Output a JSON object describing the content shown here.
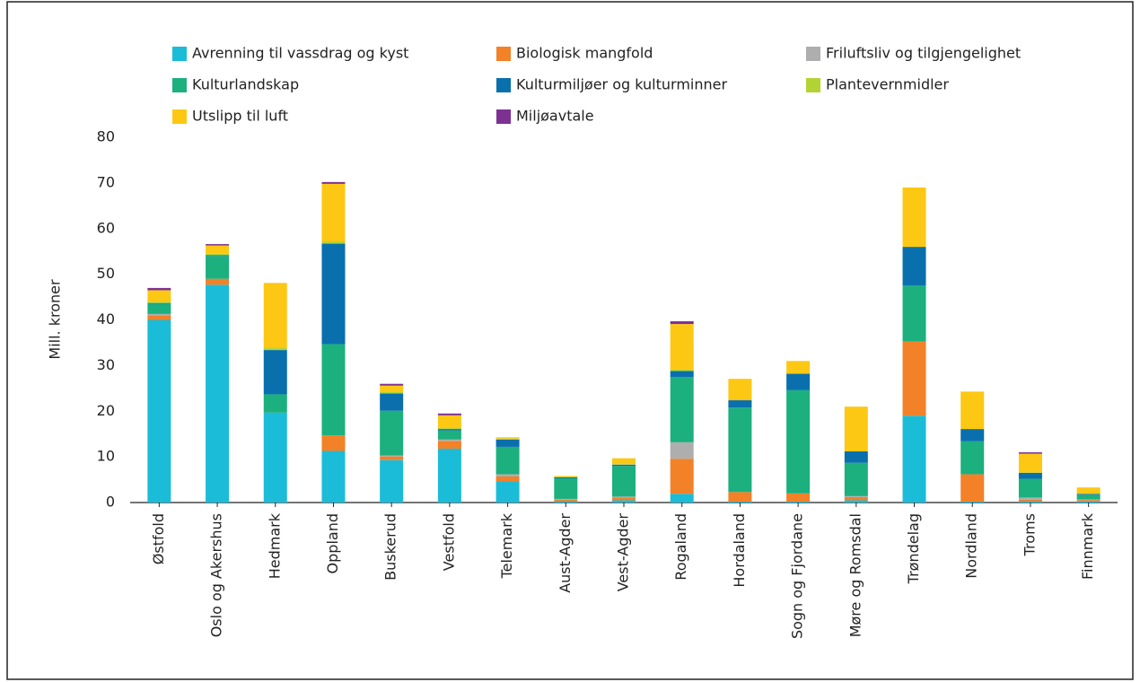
{
  "chart_data": {
    "type": "stacked_bar",
    "ylabel": "Mill. kroner",
    "categories": [
      "Østfold",
      "Oslo og Akershus",
      "Hedmark",
      "Oppland",
      "Buskerud",
      "Vestfold",
      "Telemark",
      "Aust-Agder",
      "Vest-Agder",
      "Rogaland",
      "Hordaland",
      "Sogn og Fjordane",
      "Møre og Romsdal",
      "Trøndelag",
      "Nordland",
      "Troms",
      "Finnmark"
    ],
    "series": [
      {
        "name": "Avrenning til vassdrag og kyst",
        "color": "#1bbcd8",
        "values": [
          40,
          47.7,
          19.7,
          11.3,
          9.3,
          11.8,
          4.7,
          0.3,
          0.5,
          1.9,
          0.2,
          0.2,
          0.5,
          19,
          0.2,
          0.3,
          0.2
        ]
      },
      {
        "name": "Biologisk mangfold",
        "color": "#f28128",
        "values": [
          1,
          1.3,
          0,
          3.4,
          0.8,
          1.7,
          1,
          0.3,
          0.6,
          7.7,
          2.1,
          1.8,
          0.7,
          16.3,
          6,
          0.3,
          0.3
        ]
      },
      {
        "name": "Friluftsliv og tilgjengelighet",
        "color": "#aeaeae",
        "values": [
          0.3,
          0,
          0,
          0,
          0.2,
          0.3,
          0.5,
          0.2,
          0.2,
          3.6,
          0,
          0,
          0.2,
          0,
          0,
          0.5,
          0.2
        ]
      },
      {
        "name": "Kulturlandskap",
        "color": "#1bb07e",
        "values": [
          2.2,
          5,
          4,
          20,
          9.8,
          2,
          6,
          4.5,
          6.7,
          14.3,
          18.5,
          22.6,
          7.3,
          12.2,
          7.2,
          4.1,
          1
        ]
      },
      {
        "name": "Kulturmiljøer og kulturminner",
        "color": "#0a6fad",
        "values": [
          0.2,
          0.2,
          9.7,
          22,
          3.8,
          0.3,
          1.6,
          0.2,
          0.3,
          1.3,
          1.6,
          3.6,
          2.5,
          8.5,
          2.7,
          1.3,
          0.2
        ]
      },
      {
        "name": "Plantevernmidler",
        "color": "#b3d334",
        "values": [
          0.3,
          0.3,
          0.5,
          0.5,
          0.4,
          0.2,
          0.2,
          0.1,
          0.1,
          0.3,
          0,
          0,
          0,
          0,
          0,
          0.1,
          0
        ]
      },
      {
        "name": "Utslipp til luft",
        "color": "#fcc813",
        "values": [
          2.5,
          1.8,
          14.2,
          12.6,
          1.3,
          2.8,
          0.3,
          0.2,
          1.3,
          10,
          4.7,
          2.8,
          9.8,
          13,
          8.2,
          4.1,
          1.4
        ]
      },
      {
        "name": "Miljøavtale",
        "color": "#7d3192",
        "values": [
          0.5,
          0.3,
          0,
          0.4,
          0.4,
          0.4,
          0,
          0,
          0,
          0.6,
          0,
          0,
          0,
          0,
          0,
          0.3,
          0
        ]
      }
    ],
    "ylim": [
      0,
      80
    ],
    "yticks": [
      0,
      10,
      20,
      30,
      40,
      50,
      60,
      70,
      80
    ],
    "legend": "top"
  }
}
